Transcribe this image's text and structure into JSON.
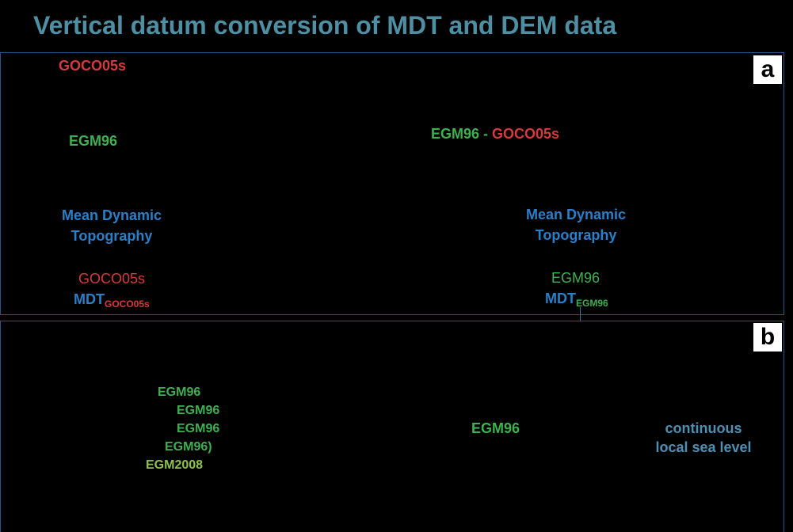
{
  "title": "Vertical datum conversion of MDT and DEM data",
  "panel_a": {
    "label": "a",
    "goco05s_top": "GOCO05s",
    "egm96_left": "EGM96",
    "difference": {
      "egm96": "EGM96",
      "separator": " - ",
      "goco05s": "GOCO05s"
    },
    "mdt_left": {
      "line1": "Mean Dynamic",
      "line2": "Topography",
      "datum": "GOCO05s",
      "symbol": "MDT",
      "subscript": "GOCO05s"
    },
    "mdt_right": {
      "line1": "Mean Dynamic",
      "line2": "Topography",
      "datum": "EGM96",
      "symbol": "MDT",
      "subscript": "EGM96"
    }
  },
  "panel_b": {
    "label": "b",
    "list": [
      "EGM96",
      "EGM96",
      "EGM96",
      "EGM96)",
      "EGM2008"
    ],
    "center_label": "EGM96",
    "right_label": {
      "line1": "continuous",
      "line2": "local sea level"
    }
  },
  "colors": {
    "title": "#4f8fa3",
    "goco05s": "#d63a3a",
    "egm96": "#3fb04f",
    "egm2008": "#8bc34a",
    "mdt": "#2a7fc9",
    "sea_level": "#4f8fb3",
    "panel_border": "#2f4f8f"
  }
}
